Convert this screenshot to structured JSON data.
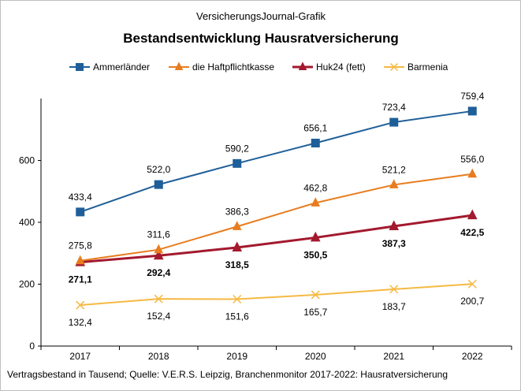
{
  "chart_data": {
    "type": "line",
    "supertitle": "VersicherungsJournal-Grafik",
    "title": "Bestandsentwicklung  Hausratversicherung",
    "source_note": "Vertragsbestand  in Tausend;  Quelle:  V.E.R.S. Leipzig,  Branchenmonitor  2017-2022:  Hausratversicherung",
    "x": [
      "2017",
      "2018",
      "2019",
      "2020",
      "2021",
      "2022"
    ],
    "ylim": [
      0,
      800
    ],
    "yticks": [
      0,
      200,
      400,
      600
    ],
    "legend_position": "top",
    "grid": false,
    "series": [
      {
        "name": "Ammerländer",
        "color": "#1f5f99",
        "marker": "square",
        "bold": false,
        "values": [
          433.4,
          522.0,
          590.2,
          656.1,
          723.4,
          759.4
        ],
        "labels": [
          "433,4",
          "522,0",
          "590,2",
          "656,1",
          "723,4",
          "759,4"
        ],
        "label_position": "above"
      },
      {
        "name": "die Haftpflichtkasse",
        "color": "#e87c1e",
        "marker": "triangle",
        "bold": false,
        "values": [
          275.8,
          311.6,
          386.3,
          462.8,
          521.2,
          556.0
        ],
        "labels": [
          "275,8",
          "311,6",
          "386,3",
          "462,8",
          "521,2",
          "556,0"
        ],
        "label_position": "above"
      },
      {
        "name": "Huk24 (fett)",
        "color": "#a3192e",
        "marker": "triangle",
        "bold": true,
        "values": [
          271.1,
          292.4,
          318.5,
          350.5,
          387.3,
          422.5
        ],
        "labels": [
          "271,1",
          "292,4",
          "318,5",
          "350,5",
          "387,3",
          "422,5"
        ],
        "label_position": "below"
      },
      {
        "name": "Barmenia",
        "color": "#f5b942",
        "marker": "x",
        "bold": false,
        "values": [
          132.4,
          152.4,
          151.6,
          165.7,
          183.7,
          200.7
        ],
        "labels": [
          "132,4",
          "152,4",
          "151,6",
          "165,7",
          "183,7",
          "200,7"
        ],
        "label_position": "below"
      }
    ]
  }
}
